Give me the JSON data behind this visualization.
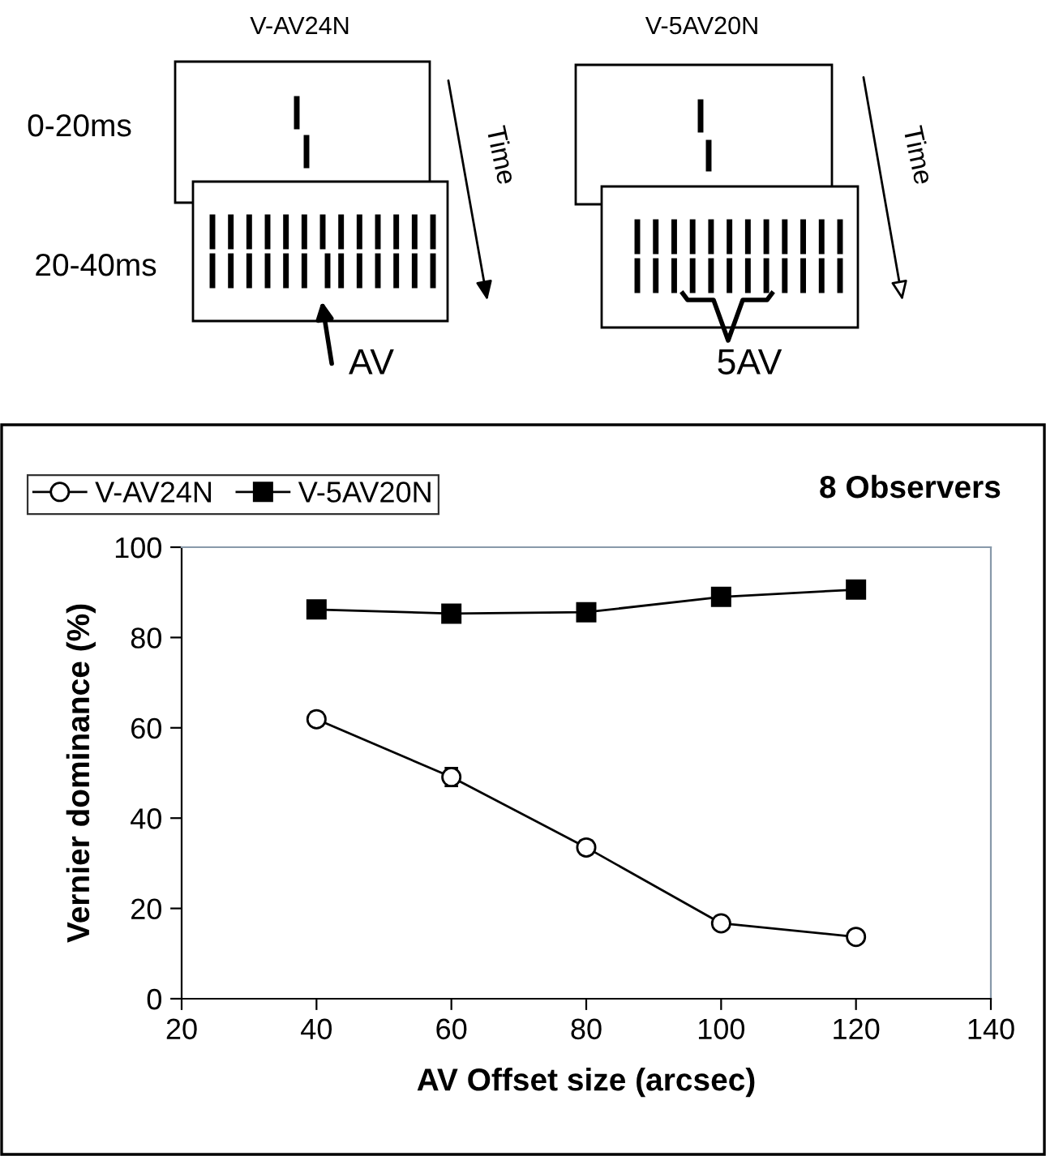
{
  "chart_data": {
    "type": "line",
    "annotations": [
      "8 Observers",
      "V-AV24N",
      "V-5AV20N",
      "0-20ms",
      "20-40ms",
      "Time",
      "AV",
      "Time",
      "5AV"
    ],
    "xlabel": "AV Offset size (arcsec)",
    "ylabel": "Vernier dominance (%)",
    "x": [
      40,
      60,
      80,
      100,
      120
    ],
    "series": [
      {
        "name": "V-AV24N",
        "color": "#000000",
        "marker": "circle",
        "values": [
          61.9,
          49.1,
          33.5,
          16.7,
          13.7
        ],
        "errors": [
          1.5,
          2,
          1.5,
          1.2,
          1.2
        ]
      },
      {
        "name": "V-5AV20N",
        "color": "#000000",
        "marker": "square",
        "values": [
          86.2,
          85.3,
          85.6,
          89.0,
          90.6
        ],
        "errors": [
          1,
          1,
          1,
          1,
          1
        ]
      }
    ],
    "xlim": [
      20,
      140
    ],
    "xticks": [
      20,
      40,
      60,
      80,
      100,
      120,
      140
    ],
    "ylim": [
      0,
      100
    ],
    "yticks": [
      0,
      20,
      40,
      60,
      80,
      100
    ],
    "legend": "top left",
    "line_style": "solid"
  }
}
